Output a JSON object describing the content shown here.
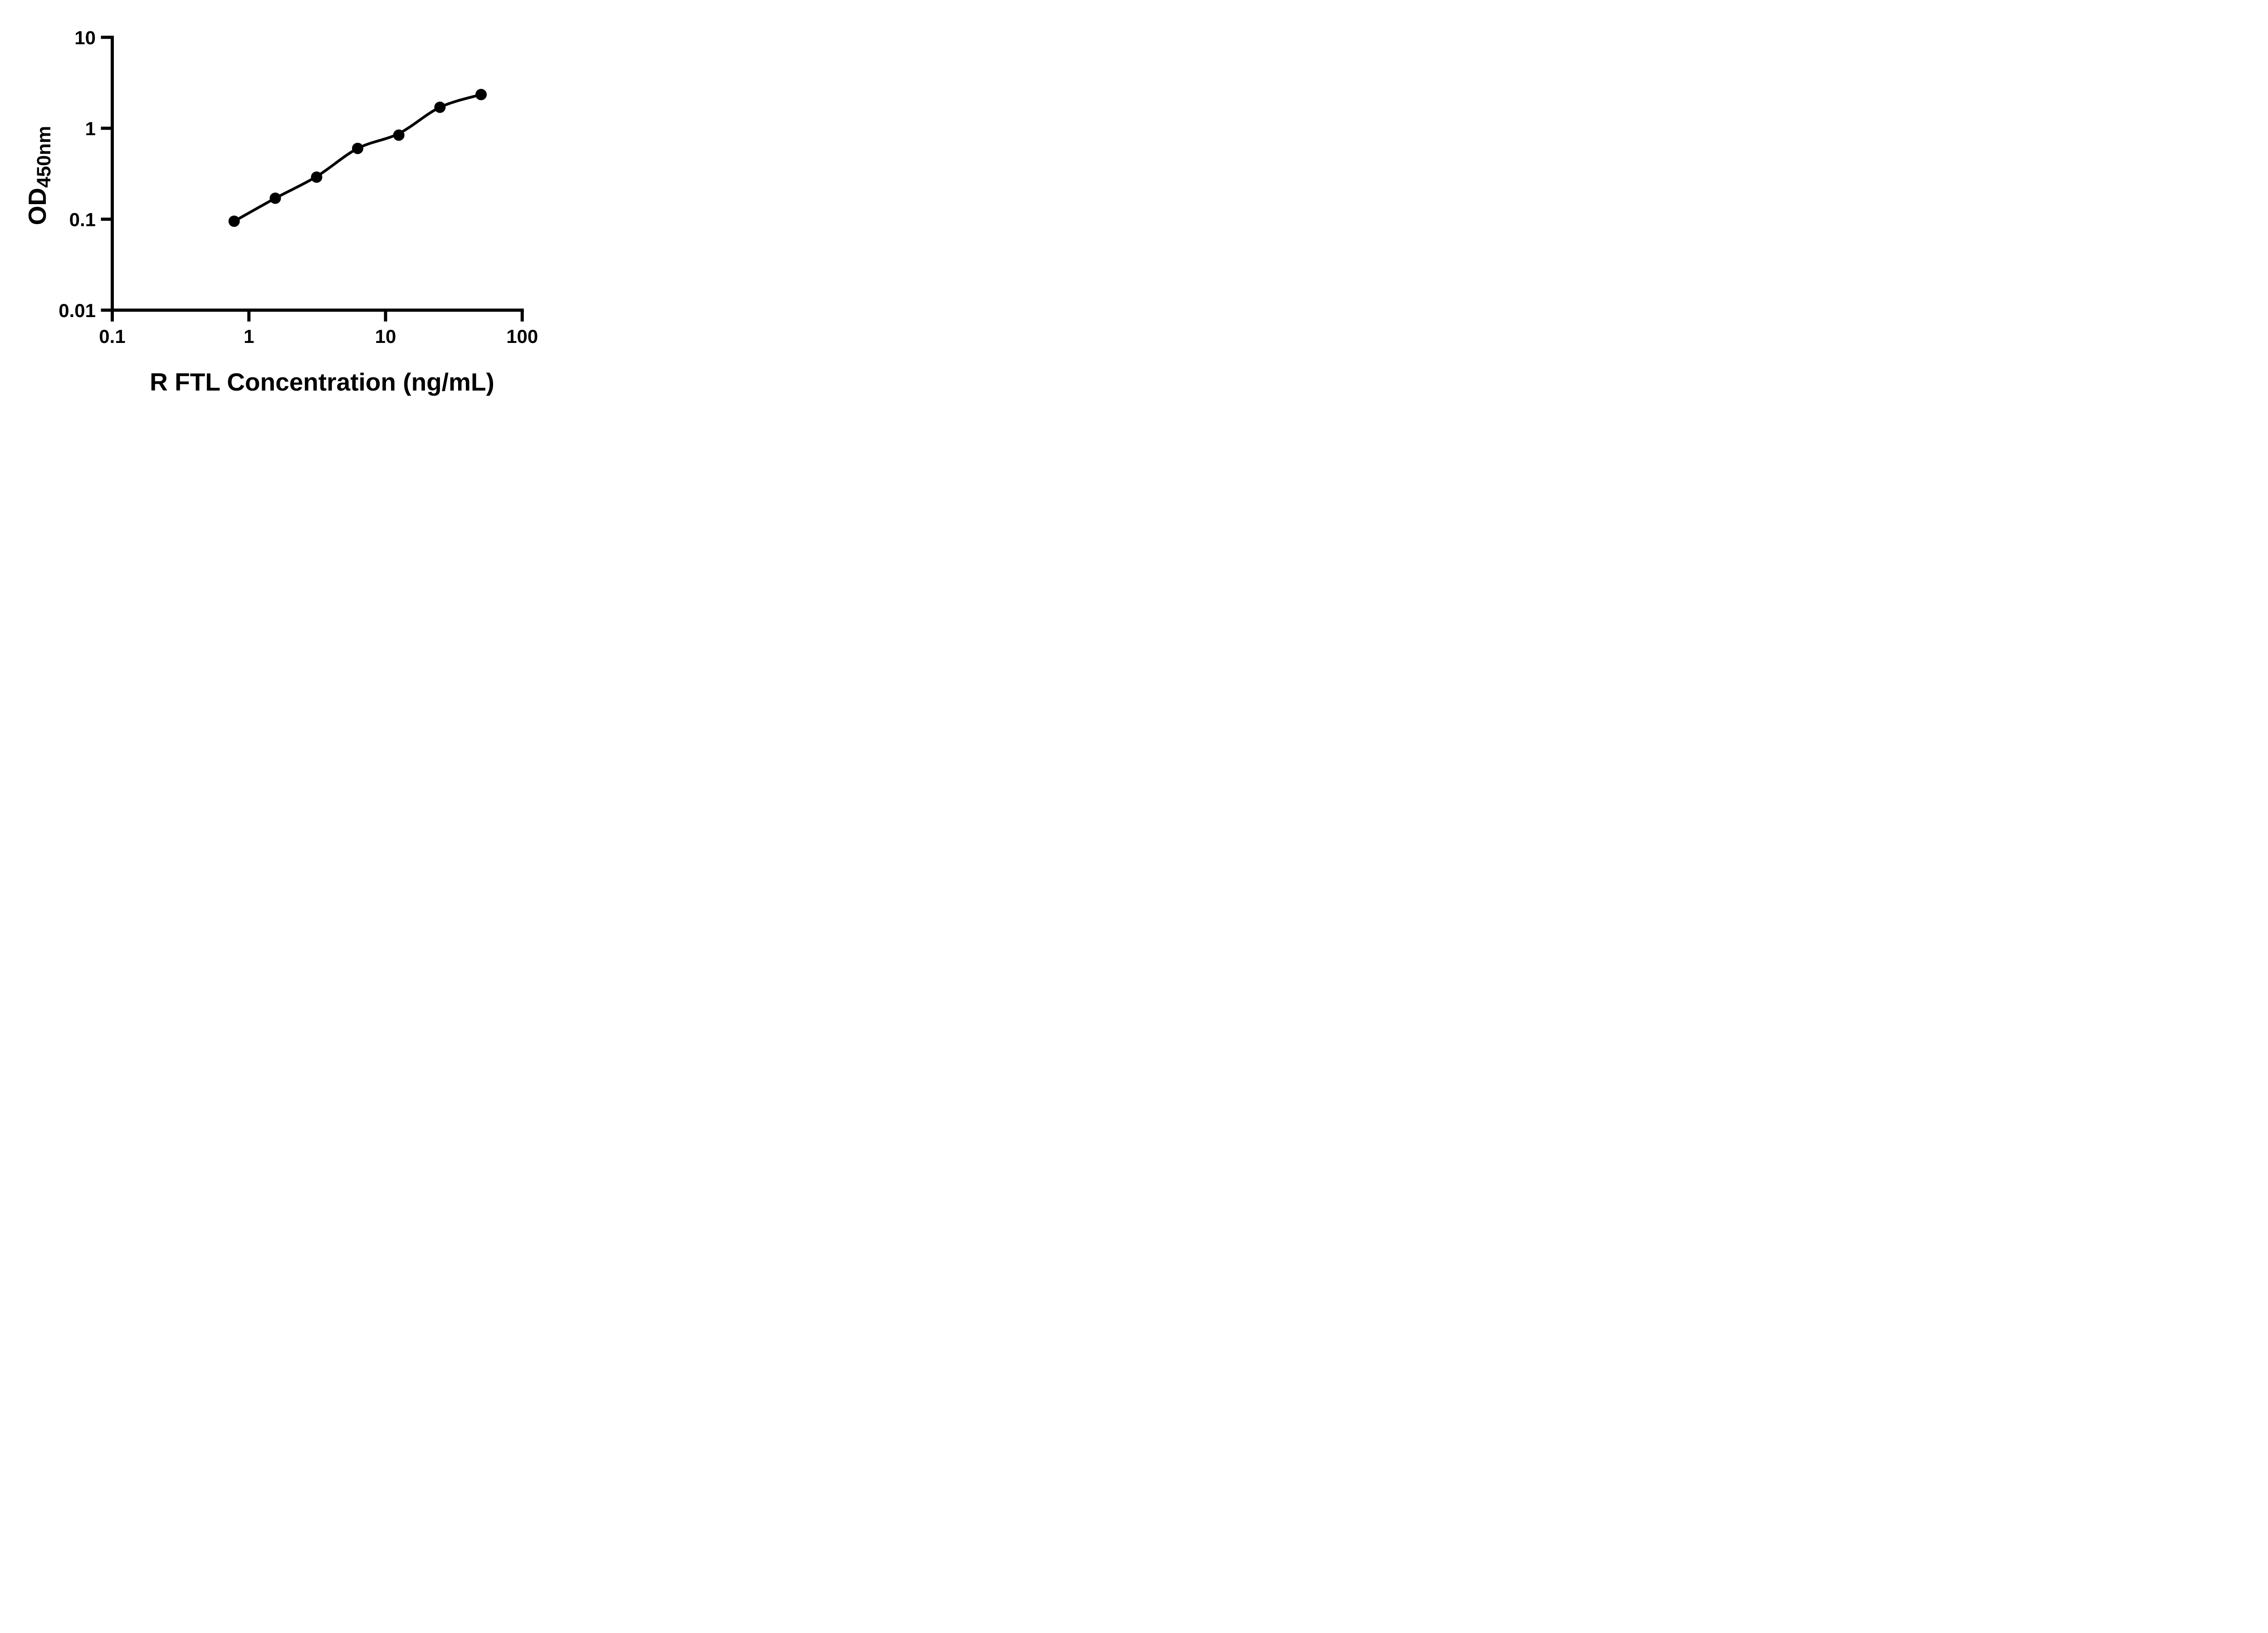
{
  "chart_data": {
    "type": "scatter",
    "title": "",
    "xlabel": "R FTL Concentration (ng/mL)",
    "ylabel_main": "OD",
    "ylabel_sub": "450nm",
    "x_scale": "log10",
    "y_scale": "log10",
    "xlim": [
      0.1,
      100
    ],
    "ylim": [
      0.01,
      10
    ],
    "x_ticks": [
      {
        "label": "0.1",
        "value": 0.1
      },
      {
        "label": "1",
        "value": 1
      },
      {
        "label": "10",
        "value": 10
      },
      {
        "label": "100",
        "value": 100
      }
    ],
    "y_ticks": [
      {
        "label": "10",
        "value": 10
      },
      {
        "label": "1",
        "value": 1
      },
      {
        "label": "0.1",
        "value": 0.1
      },
      {
        "label": "0.01",
        "value": 0.01
      }
    ],
    "grid": false,
    "legend": "none",
    "points": [
      {
        "x": 0.78,
        "od": 0.095
      },
      {
        "x": 1.56,
        "od": 0.17
      },
      {
        "x": 3.13,
        "od": 0.29
      },
      {
        "x": 6.25,
        "od": 0.6
      },
      {
        "x": 12.5,
        "od": 0.84
      },
      {
        "x": 25,
        "od": 1.7
      },
      {
        "x": 50,
        "od": 2.35
      }
    ],
    "fit_curve": {
      "model": "sigmoidal standard-curve fit through the 7 standards",
      "od_at_x": [
        0.095,
        0.17,
        0.295,
        0.6,
        0.875,
        1.7,
        2.35
      ]
    },
    "marker_shape": "circle",
    "marker_color": "#000000",
    "curve_color": "#000000",
    "axis_color": "#000000",
    "text_color": "#000000",
    "background_color": "#ffffff"
  }
}
